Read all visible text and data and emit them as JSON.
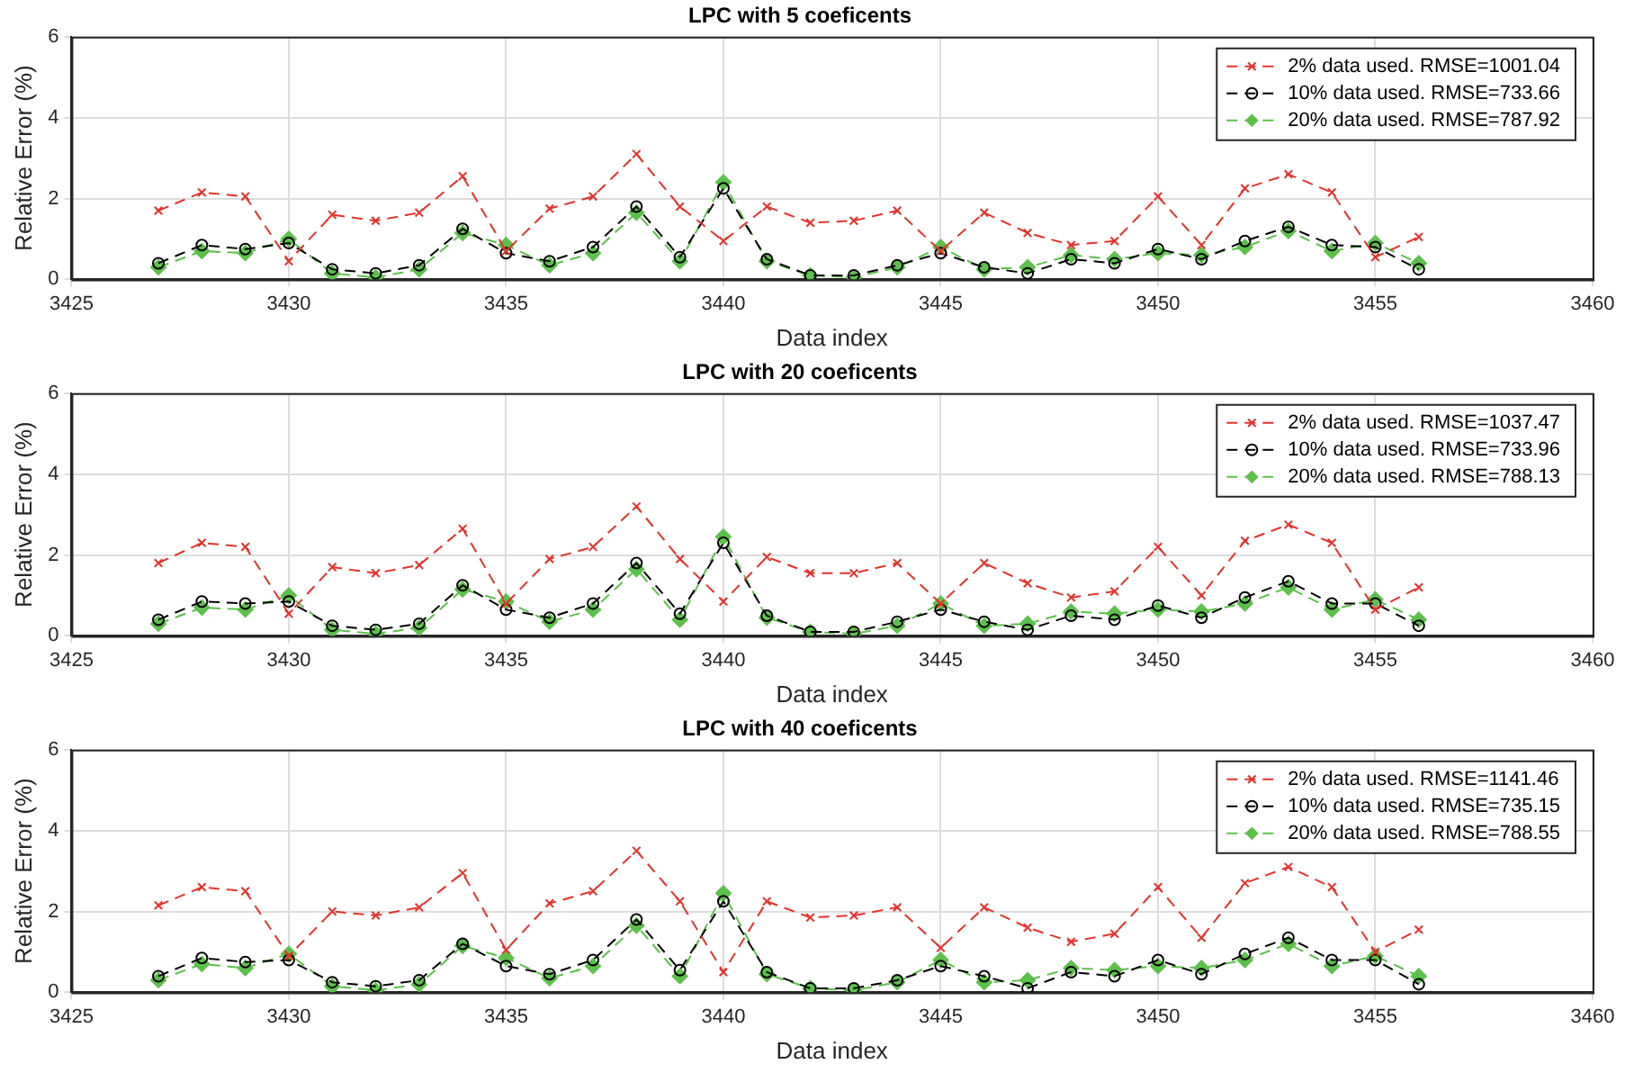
{
  "chart_data": [
    {
      "type": "line",
      "title": "LPC with 5 coeficents",
      "xlabel": "Data index",
      "ylabel": "Relative Error (%)",
      "x": [
        3427,
        3428,
        3429,
        3430,
        3431,
        3432,
        3433,
        3434,
        3435,
        3436,
        3437,
        3438,
        3439,
        3440,
        3441,
        3442,
        3443,
        3444,
        3445,
        3446,
        3447,
        3448,
        3449,
        3450,
        3451,
        3452,
        3453,
        3454,
        3455,
        3456
      ],
      "series": [
        {
          "name": "2% data used. RMSE=1001.04",
          "color": "#e8312a",
          "marker": "cross",
          "line_style": "dashed",
          "values": [
            1.7,
            2.15,
            2.05,
            0.45,
            1.6,
            1.45,
            1.65,
            2.55,
            0.7,
            1.75,
            2.05,
            3.1,
            1.8,
            0.95,
            1.8,
            1.4,
            1.45,
            1.7,
            0.7,
            1.65,
            1.15,
            0.85,
            0.95,
            2.05,
            0.85,
            2.25,
            2.6,
            2.15,
            0.55,
            1.05
          ]
        },
        {
          "name": "10% data used. RMSE=733.66",
          "color": "#000000",
          "marker": "circle",
          "line_style": "dashed",
          "values": [
            0.4,
            0.85,
            0.75,
            0.9,
            0.25,
            0.15,
            0.35,
            1.25,
            0.65,
            0.45,
            0.8,
            1.8,
            0.55,
            2.25,
            0.5,
            0.1,
            0.1,
            0.35,
            0.65,
            0.3,
            0.15,
            0.5,
            0.4,
            0.75,
            0.5,
            0.95,
            1.3,
            0.85,
            0.8,
            0.25
          ]
        },
        {
          "name": "20% data used. RMSE=787.92",
          "color": "#5cc14a",
          "marker": "diamond",
          "line_style": "dashed",
          "values": [
            0.3,
            0.7,
            0.65,
            1.0,
            0.15,
            0.05,
            0.25,
            1.15,
            0.85,
            0.35,
            0.65,
            1.65,
            0.45,
            2.4,
            0.45,
            0.1,
            0.05,
            0.3,
            0.8,
            0.25,
            0.3,
            0.6,
            0.5,
            0.65,
            0.6,
            0.8,
            1.2,
            0.7,
            0.9,
            0.4
          ]
        }
      ],
      "xlim": [
        3425,
        3460
      ],
      "xticks": [
        3425,
        3430,
        3435,
        3440,
        3445,
        3450,
        3455,
        3460
      ],
      "ylim": [
        0,
        6
      ],
      "yticks": [
        0,
        2,
        4,
        6
      ],
      "grid": true,
      "legend": "top right"
    },
    {
      "type": "line",
      "title": "LPC with 20 coeficents",
      "xlabel": "Data index",
      "ylabel": "Relative Error (%)",
      "x": [
        3427,
        3428,
        3429,
        3430,
        3431,
        3432,
        3433,
        3434,
        3435,
        3436,
        3437,
        3438,
        3439,
        3440,
        3441,
        3442,
        3443,
        3444,
        3445,
        3446,
        3447,
        3448,
        3449,
        3450,
        3451,
        3452,
        3453,
        3454,
        3455,
        3456
      ],
      "series": [
        {
          "name": "2% data used. RMSE=1037.47",
          "color": "#e8312a",
          "marker": "cross",
          "line_style": "dashed",
          "values": [
            1.8,
            2.3,
            2.2,
            0.55,
            1.7,
            1.55,
            1.75,
            2.65,
            0.8,
            1.9,
            2.2,
            3.2,
            1.9,
            0.85,
            1.95,
            1.55,
            1.55,
            1.8,
            0.8,
            1.8,
            1.3,
            0.95,
            1.1,
            2.2,
            1.0,
            2.35,
            2.75,
            2.3,
            0.65,
            1.2
          ]
        },
        {
          "name": "10% data used. RMSE=733.96",
          "color": "#000000",
          "marker": "circle",
          "line_style": "dashed",
          "values": [
            0.4,
            0.85,
            0.8,
            0.85,
            0.25,
            0.15,
            0.3,
            1.25,
            0.65,
            0.45,
            0.8,
            1.8,
            0.55,
            2.3,
            0.5,
            0.1,
            0.1,
            0.35,
            0.65,
            0.35,
            0.15,
            0.5,
            0.4,
            0.75,
            0.45,
            0.95,
            1.35,
            0.8,
            0.8,
            0.25
          ]
        },
        {
          "name": "20% data used. RMSE=788.13",
          "color": "#5cc14a",
          "marker": "diamond",
          "line_style": "dashed",
          "values": [
            0.3,
            0.7,
            0.65,
            1.0,
            0.15,
            0.05,
            0.2,
            1.15,
            0.85,
            0.35,
            0.65,
            1.65,
            0.4,
            2.45,
            0.45,
            0.1,
            0.05,
            0.25,
            0.8,
            0.25,
            0.3,
            0.6,
            0.55,
            0.65,
            0.6,
            0.8,
            1.2,
            0.65,
            0.9,
            0.4
          ]
        }
      ],
      "xlim": [
        3425,
        3460
      ],
      "xticks": [
        3425,
        3430,
        3435,
        3440,
        3445,
        3450,
        3455,
        3460
      ],
      "ylim": [
        0,
        6
      ],
      "yticks": [
        0,
        2,
        4,
        6
      ],
      "grid": true,
      "legend": "top right"
    },
    {
      "type": "line",
      "title": "LPC with 40 coeficents",
      "xlabel": "Data index",
      "ylabel": "Relative Error (%)",
      "x": [
        3427,
        3428,
        3429,
        3430,
        3431,
        3432,
        3433,
        3434,
        3435,
        3436,
        3437,
        3438,
        3439,
        3440,
        3441,
        3442,
        3443,
        3444,
        3445,
        3446,
        3447,
        3448,
        3449,
        3450,
        3451,
        3452,
        3453,
        3454,
        3455,
        3456
      ],
      "series": [
        {
          "name": "2% data used. RMSE=1141.46",
          "color": "#e8312a",
          "marker": "cross",
          "line_style": "dashed",
          "values": [
            2.15,
            2.6,
            2.5,
            0.9,
            2.0,
            1.9,
            2.1,
            2.95,
            1.05,
            2.2,
            2.5,
            3.5,
            2.25,
            0.5,
            2.25,
            1.85,
            1.9,
            2.1,
            1.1,
            2.1,
            1.6,
            1.25,
            1.45,
            2.6,
            1.35,
            2.7,
            3.1,
            2.6,
            1.0,
            1.55
          ]
        },
        {
          "name": "10% data used. RMSE=735.15",
          "color": "#000000",
          "marker": "circle",
          "line_style": "dashed",
          "values": [
            0.4,
            0.85,
            0.75,
            0.8,
            0.25,
            0.15,
            0.3,
            1.2,
            0.65,
            0.45,
            0.8,
            1.8,
            0.55,
            2.25,
            0.5,
            0.1,
            0.1,
            0.3,
            0.65,
            0.4,
            0.1,
            0.5,
            0.4,
            0.8,
            0.45,
            0.95,
            1.35,
            0.8,
            0.8,
            0.2
          ]
        },
        {
          "name": "20% data used. RMSE=788.55",
          "color": "#5cc14a",
          "marker": "diamond",
          "line_style": "dashed",
          "values": [
            0.3,
            0.7,
            0.6,
            0.95,
            0.15,
            0.05,
            0.2,
            1.15,
            0.85,
            0.35,
            0.65,
            1.65,
            0.4,
            2.45,
            0.45,
            0.1,
            0.05,
            0.25,
            0.8,
            0.25,
            0.3,
            0.6,
            0.55,
            0.65,
            0.6,
            0.8,
            1.2,
            0.65,
            0.9,
            0.4
          ]
        }
      ],
      "xlim": [
        3425,
        3460
      ],
      "xticks": [
        3425,
        3430,
        3435,
        3440,
        3445,
        3450,
        3455,
        3460
      ],
      "ylim": [
        0,
        6
      ],
      "yticks": [
        0,
        2,
        4,
        6
      ],
      "grid": true,
      "legend": "top right"
    }
  ]
}
